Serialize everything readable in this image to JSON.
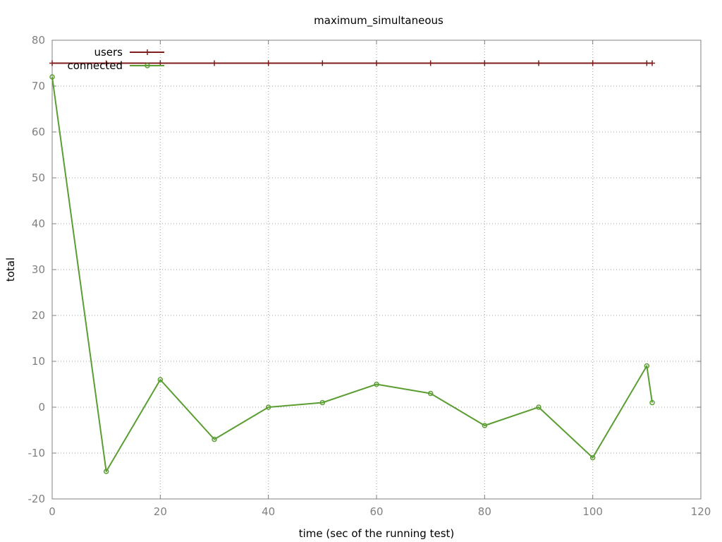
{
  "chart_data": {
    "type": "line",
    "title": "maximum_simultaneous",
    "xlabel": "time (sec of the running test)",
    "ylabel": "total",
    "xlim": [
      0,
      120
    ],
    "ylim": [
      -20,
      80
    ],
    "xticks": [
      0,
      20,
      40,
      60,
      80,
      100,
      120
    ],
    "yticks": [
      -20,
      -10,
      0,
      10,
      20,
      30,
      40,
      50,
      60,
      70,
      80
    ],
    "grid": true,
    "legend_position": "top-left",
    "series": [
      {
        "name": "users",
        "color": "#7f1d1d",
        "marker": "plus",
        "x": [
          0,
          10,
          20,
          30,
          40,
          50,
          60,
          70,
          80,
          90,
          100,
          110,
          111
        ],
        "y": [
          75,
          75,
          75,
          75,
          75,
          75,
          75,
          75,
          75,
          75,
          75,
          75,
          75
        ]
      },
      {
        "name": "connected",
        "color": "#5a9e32",
        "marker": "circle",
        "x": [
          0,
          10,
          20,
          30,
          40,
          50,
          60,
          70,
          80,
          90,
          100,
          110,
          111
        ],
        "y": [
          72,
          -14,
          6,
          -7,
          0,
          1,
          5,
          3,
          -4,
          0,
          -11,
          9,
          1
        ]
      }
    ]
  }
}
